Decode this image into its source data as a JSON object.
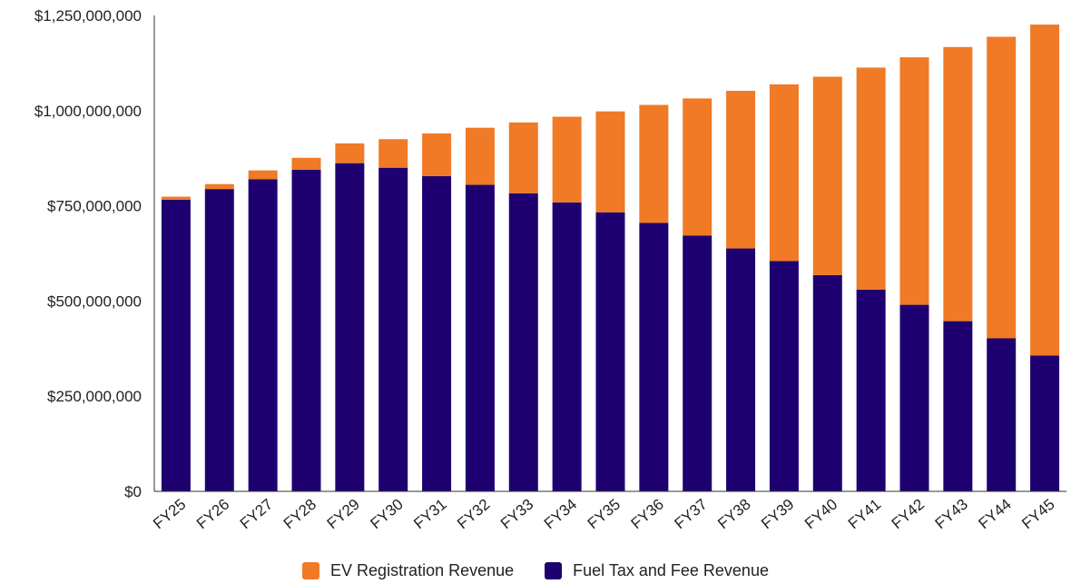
{
  "chart_data": {
    "type": "bar",
    "stacked": true,
    "categories": [
      "FY25",
      "FY26",
      "FY27",
      "FY28",
      "FY29",
      "FY30",
      "FY31",
      "FY32",
      "FY33",
      "FY34",
      "FY35",
      "FY36",
      "FY37",
      "FY38",
      "FY39",
      "FY40",
      "FY41",
      "FY42",
      "FY43",
      "FY44",
      "FY45"
    ],
    "series": [
      {
        "name": "Fuel Tax and Fee Revenue",
        "color": "#1f0070",
        "values": [
          766000000,
          794000000,
          820000000,
          845000000,
          862000000,
          850000000,
          828000000,
          805000000,
          783000000,
          759000000,
          733000000,
          705000000,
          672000000,
          638000000,
          605000000,
          568000000,
          530000000,
          490000000,
          447000000,
          402000000,
          357000000
        ]
      },
      {
        "name": "EV Registration Revenue",
        "color": "#f07a25",
        "values": [
          8000000,
          13000000,
          23000000,
          31000000,
          52000000,
          75000000,
          112000000,
          150000000,
          186000000,
          225000000,
          265000000,
          310000000,
          360000000,
          414000000,
          464000000,
          521000000,
          583000000,
          650000000,
          720000000,
          792000000,
          869000000
        ]
      }
    ],
    "ylim": [
      0,
      1250000000
    ],
    "yticks": [
      0,
      250000000,
      500000000,
      750000000,
      1000000000,
      1250000000
    ],
    "ytick_labels": [
      "$0",
      "$250,000,000",
      "$500,000,000",
      "$750,000,000",
      "$1,000,000,000",
      "$1,250,000,000"
    ],
    "xlabel": "",
    "ylabel": "",
    "title": "",
    "grid": false,
    "legend_position": "bottom"
  },
  "legend": {
    "items": [
      {
        "label": "EV Registration Revenue",
        "color": "#f07a25"
      },
      {
        "label": "Fuel Tax and Fee Revenue",
        "color": "#1f0070"
      }
    ]
  }
}
